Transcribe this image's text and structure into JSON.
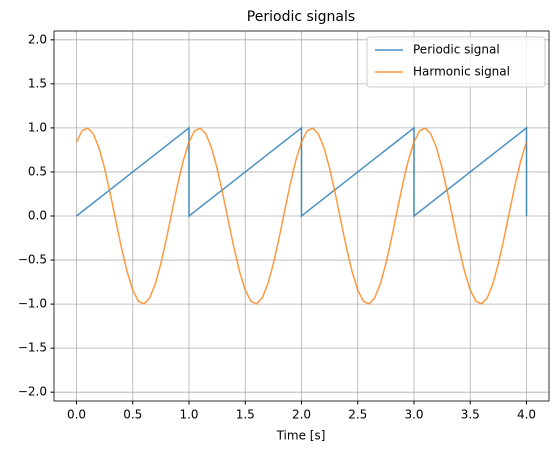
{
  "chart_data": {
    "type": "line",
    "title": "Periodic signals",
    "xlabel": "Time [s]",
    "xlim": [
      -0.2,
      4.2
    ],
    "ylim": [
      -2.1,
      2.1
    ],
    "xticks": [
      {
        "value": 0,
        "label": "0.0"
      },
      {
        "value": 0.5,
        "label": "0.5"
      },
      {
        "value": 1,
        "label": "1.0"
      },
      {
        "value": 1.5,
        "label": "1.5"
      },
      {
        "value": 2,
        "label": "2.0"
      },
      {
        "value": 2.5,
        "label": "2.5"
      },
      {
        "value": 3,
        "label": "3.0"
      },
      {
        "value": 3.5,
        "label": "3.5"
      },
      {
        "value": 4,
        "label": "4.0"
      }
    ],
    "yticks": [
      {
        "value": -2,
        "label": "−2.0"
      },
      {
        "value": -1.5,
        "label": "−1.5"
      },
      {
        "value": -1,
        "label": "−1.0"
      },
      {
        "value": -0.5,
        "label": "−0.5"
      },
      {
        "value": 0,
        "label": "0.0"
      },
      {
        "value": 0.5,
        "label": "0.5"
      },
      {
        "value": 1,
        "label": "1.0"
      },
      {
        "value": 1.5,
        "label": "1.5"
      },
      {
        "value": 2,
        "label": "2.0"
      }
    ],
    "grid": true,
    "legend": "upper right",
    "series": [
      {
        "name": "Periodic signal",
        "color": "#1f77b4",
        "x": [
          0,
          1,
          1,
          2,
          2,
          3,
          3,
          4,
          4
        ],
        "values": [
          0,
          1,
          0,
          1,
          0,
          1,
          0,
          1,
          0
        ]
      },
      {
        "name": "Harmonic signal",
        "color": "#ff7f0e",
        "x": [
          0,
          0.05,
          0.1,
          0.15,
          0.2,
          0.25,
          0.3,
          0.35,
          0.4,
          0.45,
          0.5,
          0.55,
          0.6,
          0.65,
          0.7,
          0.75,
          0.8,
          0.85,
          0.9,
          0.95,
          1,
          1.05,
          1.1,
          1.15,
          1.2,
          1.25,
          1.3,
          1.35,
          1.4,
          1.45,
          1.5,
          1.55,
          1.6,
          1.65,
          1.7,
          1.75,
          1.8,
          1.85,
          1.9,
          1.95,
          2,
          2.05,
          2.1,
          2.15,
          2.2,
          2.25,
          2.3,
          2.35,
          2.4,
          2.45,
          2.5,
          2.55,
          2.6,
          2.65,
          2.7,
          2.75,
          2.8,
          2.85,
          2.9,
          2.95,
          3,
          3.05,
          3.1,
          3.15,
          3.2,
          3.25,
          3.3,
          3.35,
          3.4,
          3.45,
          3.5,
          3.55,
          3.6,
          3.65,
          3.7,
          3.75,
          3.8,
          3.85,
          3.9,
          3.95,
          4
        ],
        "values": [
          0.841,
          0.967,
          0.998,
          0.931,
          0.774,
          0.54,
          0.254,
          -0.058,
          -0.363,
          -0.633,
          -0.841,
          -0.967,
          -0.998,
          -0.931,
          -0.774,
          -0.54,
          -0.254,
          0.058,
          0.363,
          0.633,
          0.841,
          0.967,
          0.998,
          0.931,
          0.774,
          0.54,
          0.254,
          -0.058,
          -0.363,
          -0.633,
          -0.841,
          -0.967,
          -0.998,
          -0.931,
          -0.774,
          -0.54,
          -0.254,
          0.058,
          0.363,
          0.633,
          0.841,
          0.967,
          0.998,
          0.931,
          0.774,
          0.54,
          0.254,
          -0.058,
          -0.363,
          -0.633,
          -0.841,
          -0.967,
          -0.998,
          -0.931,
          -0.774,
          -0.54,
          -0.254,
          0.058,
          0.363,
          0.633,
          0.841,
          0.967,
          0.998,
          0.931,
          0.774,
          0.54,
          0.254,
          -0.058,
          -0.363,
          -0.633,
          -0.841,
          -0.967,
          -0.998,
          -0.931,
          -0.774,
          -0.54,
          -0.254,
          0.058,
          0.363,
          0.633,
          0.841
        ]
      }
    ]
  }
}
